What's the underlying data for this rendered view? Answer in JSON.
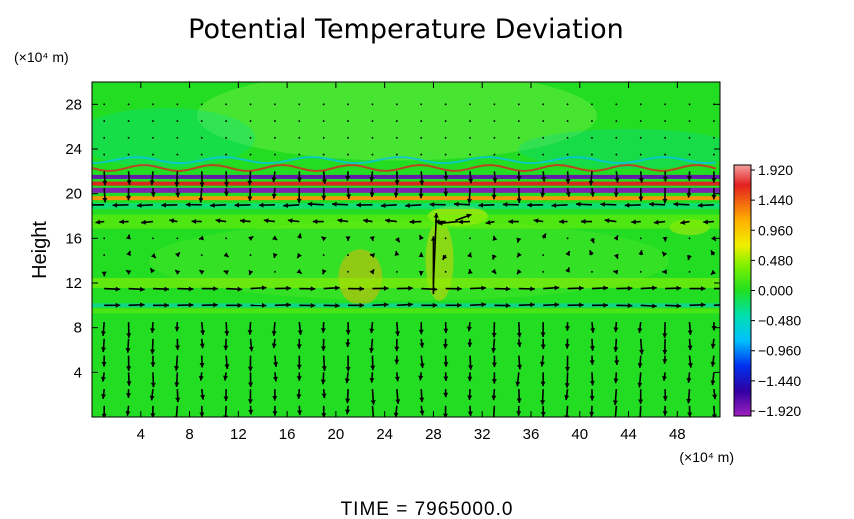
{
  "chart_data": {
    "type": "heatmap",
    "title": "Potential Temperature Deviation",
    "ylabel": "Height",
    "x_unit_label": "(×10⁴ m)",
    "y_unit_label": "(×10⁴ m)",
    "footer": "TIME = 7965000.0",
    "xlim": [
      0,
      51.5
    ],
    "ylim": [
      0,
      30
    ],
    "x_ticks": [
      4,
      8,
      12,
      16,
      20,
      24,
      28,
      32,
      36,
      40,
      44,
      48
    ],
    "y_ticks": [
      4,
      8,
      12,
      16,
      20,
      24,
      28
    ],
    "colorbar": {
      "range": [
        -2.0,
        2.0
      ],
      "ticks": [
        1.92,
        1.44,
        0.96,
        0.48,
        0.0,
        -0.48,
        -0.96,
        -1.44,
        -1.92
      ],
      "tick_labels": [
        "1.920",
        "1.440",
        "0.960",
        "0.480",
        "0.000",
        "−0.480",
        "−0.960",
        "−1.440",
        "−1.920"
      ]
    },
    "field_layers": [
      {
        "y": 21.5,
        "value": -1.8
      },
      {
        "y": 20.9,
        "value": 1.6
      },
      {
        "y": 20.3,
        "value": -1.9
      },
      {
        "y": 19.6,
        "value": 1.2
      },
      {
        "y": 18.9,
        "value": -0.4
      },
      {
        "y": 17.5,
        "value": 0.35
      },
      {
        "y": 12.0,
        "value": 0.45
      },
      {
        "y": 10.0,
        "value": -0.6
      },
      {
        "y": 9.5,
        "value": 0.3
      }
    ],
    "vectors_dominant": {
      "top_layer_y": 19.5,
      "top_layer_direction": "right-to-left",
      "mid_layer_y": 10.5,
      "mid_layer_direction": "left-to-right",
      "lower_region_direction": "mostly vertical"
    }
  }
}
